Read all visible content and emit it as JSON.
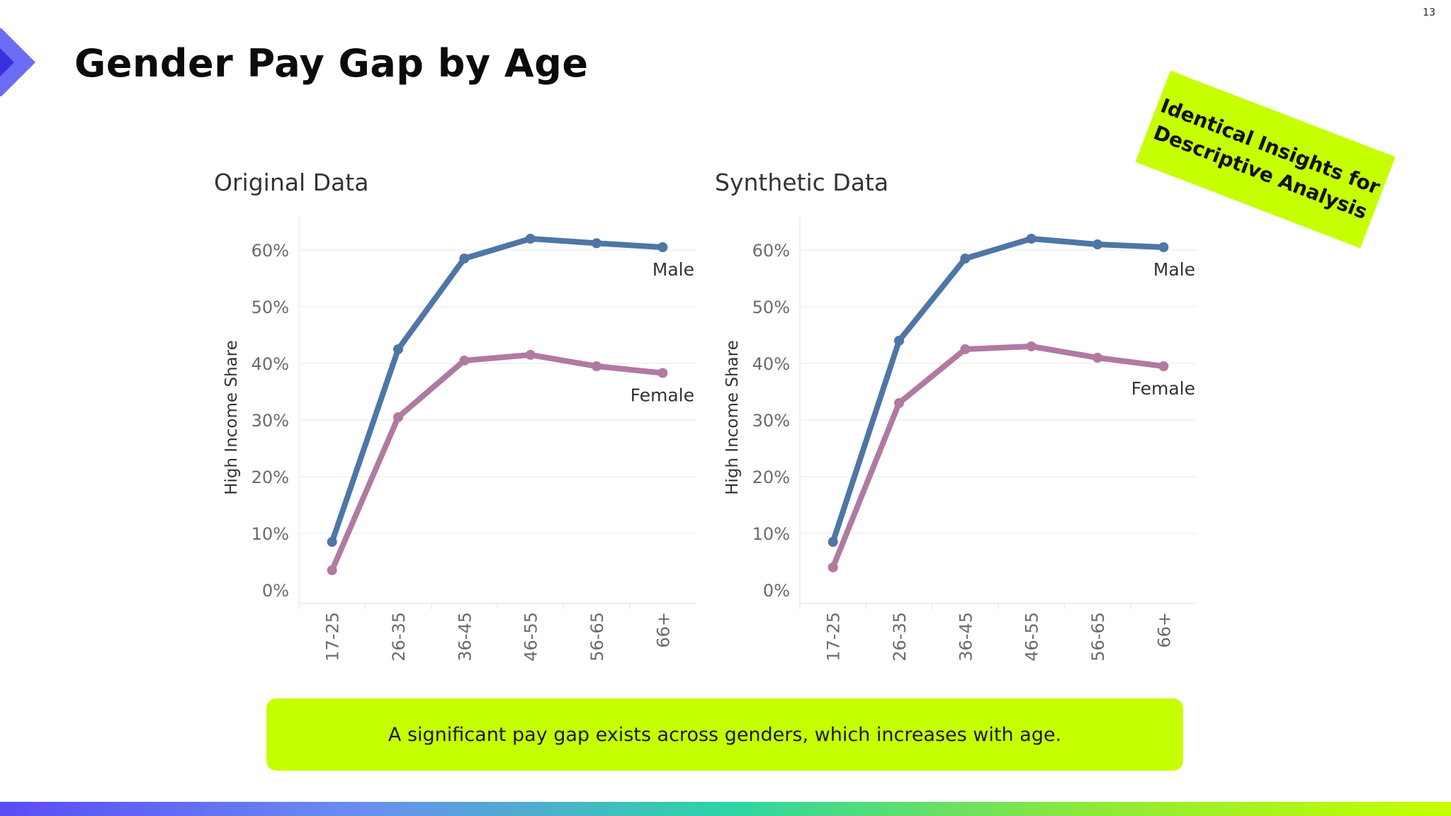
{
  "page": {
    "number": "13",
    "title": "Gender Pay Gap by Age",
    "sticker": {
      "line1": "Identical Insights for",
      "line2": "Descriptive Analysis"
    },
    "summary": "A significant pay gap exists across genders, which increases with age.",
    "colors": {
      "accent": "#c6ff00",
      "male": "#4e76a6",
      "female": "#b07aa1"
    }
  },
  "chart_data": [
    {
      "type": "line",
      "title": "Original Data",
      "ylabel": "High Income Share",
      "xlabel": "",
      "categories": [
        "17-25",
        "26-35",
        "36-45",
        "46-55",
        "56-65",
        "66+"
      ],
      "yticks": [
        "0%",
        "10%",
        "20%",
        "30%",
        "40%",
        "50%",
        "60%"
      ],
      "ylim": [
        0,
        65
      ],
      "grid": true,
      "series": [
        {
          "name": "Male",
          "color": "#4e76a6",
          "values": [
            8.5,
            42.5,
            58.5,
            62.0,
            61.2,
            60.5
          ]
        },
        {
          "name": "Female",
          "color": "#b07aa1",
          "values": [
            3.5,
            30.5,
            40.5,
            41.5,
            39.5,
            38.3
          ]
        }
      ]
    },
    {
      "type": "line",
      "title": "Synthetic Data",
      "ylabel": "High Income Share",
      "xlabel": "",
      "categories": [
        "17-25",
        "26-35",
        "36-45",
        "46-55",
        "56-65",
        "66+"
      ],
      "yticks": [
        "0%",
        "10%",
        "20%",
        "30%",
        "40%",
        "50%",
        "60%"
      ],
      "ylim": [
        0,
        65
      ],
      "grid": true,
      "series": [
        {
          "name": "Male",
          "color": "#4e76a6",
          "values": [
            8.5,
            44.0,
            58.5,
            62.0,
            61.0,
            60.5
          ]
        },
        {
          "name": "Female",
          "color": "#b07aa1",
          "values": [
            4.0,
            33.0,
            42.5,
            43.0,
            41.0,
            39.5
          ]
        }
      ]
    }
  ]
}
